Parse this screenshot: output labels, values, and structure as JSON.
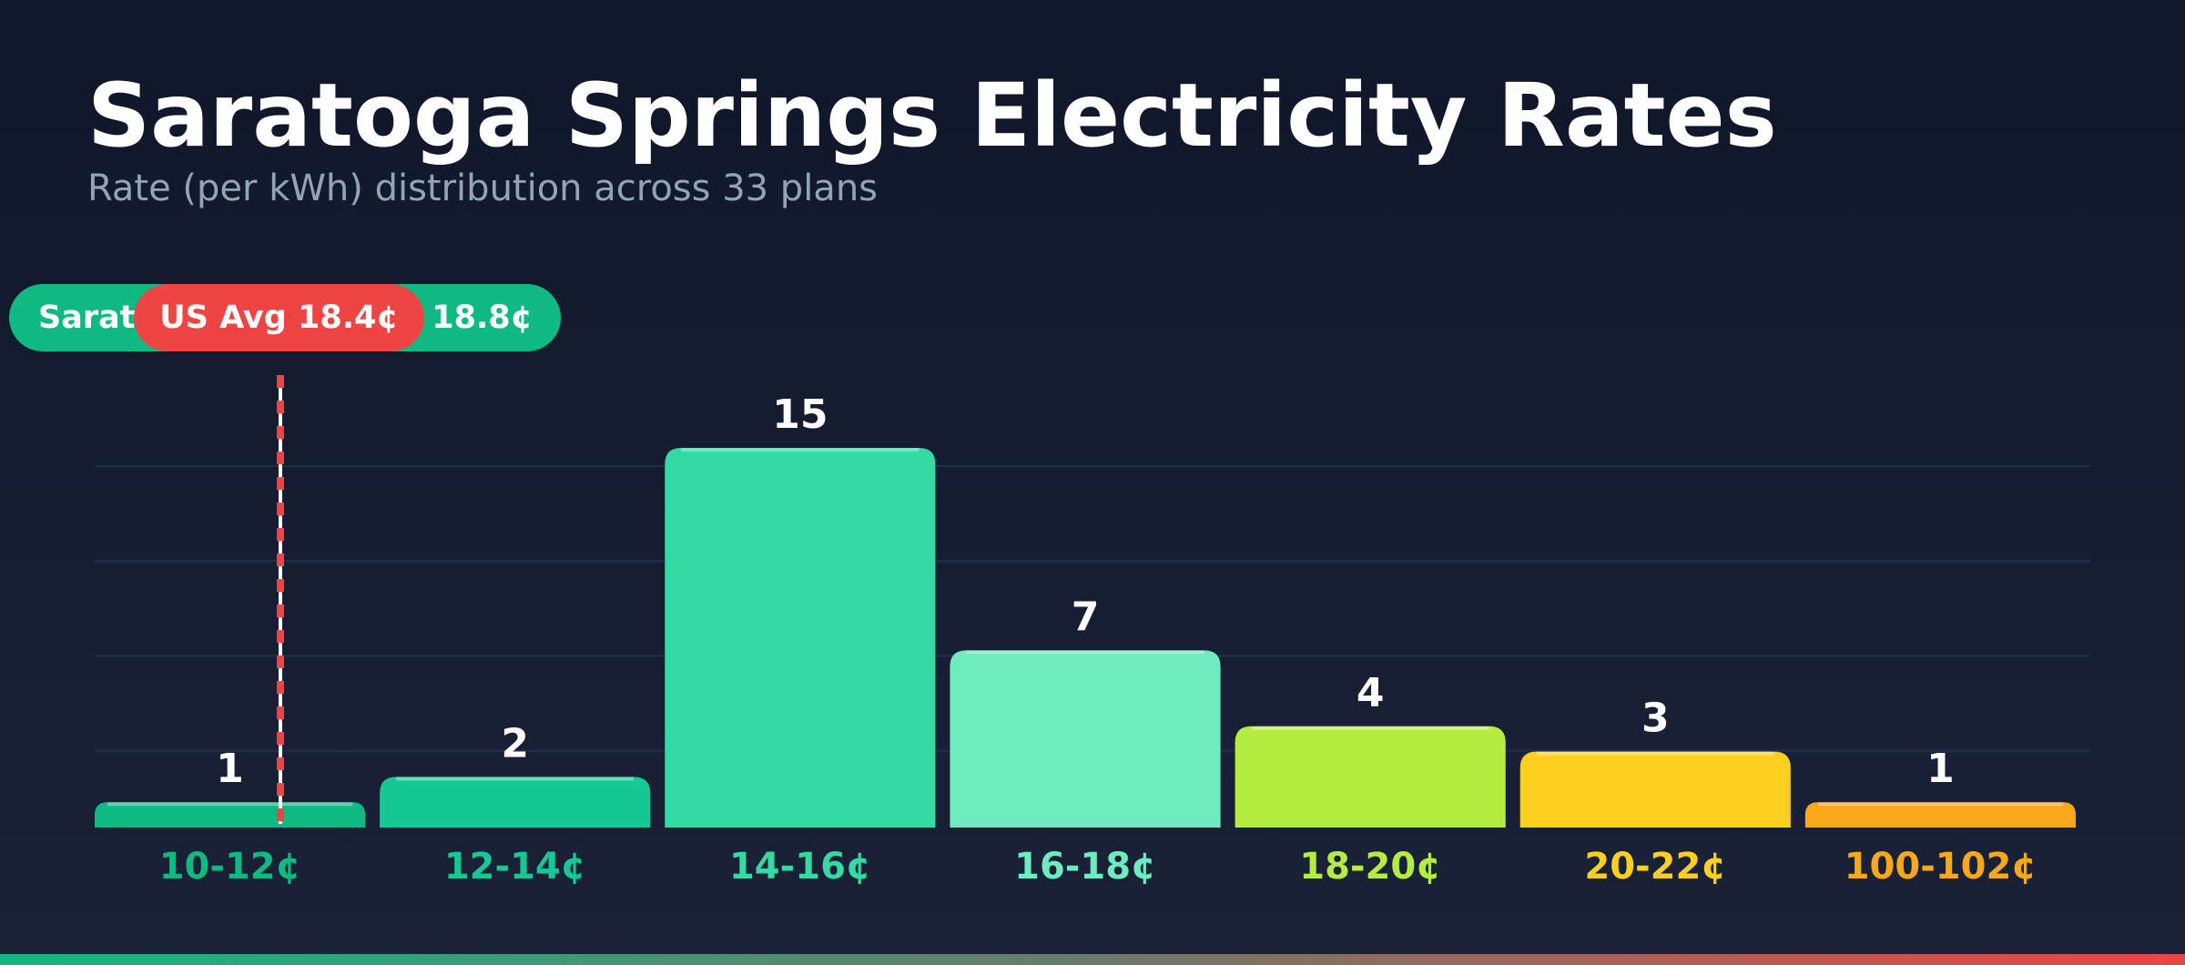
{
  "header": {
    "title": "Saratoga Springs Electricity Rates",
    "subtitle": "Rate (per kWh) distribution across 33 plans"
  },
  "markers": {
    "local": {
      "label": "Sarat",
      "value_label": "18.8¢",
      "color": "#10b981"
    },
    "us_avg": {
      "label": "US Avg 18.4¢",
      "color": "#ef4444"
    }
  },
  "chart_data": {
    "type": "bar",
    "title": "Saratoga Springs Electricity Rates",
    "subtitle": "Rate (per kWh) distribution across 33 plans",
    "categories": [
      "10-12¢",
      "12-14¢",
      "14-16¢",
      "16-18¢",
      "18-20¢",
      "20-22¢",
      "100-102¢"
    ],
    "values": [
      1,
      2,
      15,
      7,
      4,
      3,
      1
    ],
    "colors": [
      "#10b981",
      "#14c994",
      "#34d9a3",
      "#6eecc0",
      "#b4ed40",
      "#fdd020",
      "#f9a81a"
    ],
    "xlabel": "",
    "ylabel": "",
    "ylim": [
      0,
      15
    ],
    "grid": true,
    "legend": "none",
    "reference_lines": [
      {
        "name": "US Avg",
        "value": 18.4,
        "color": "#ef4444"
      }
    ]
  }
}
